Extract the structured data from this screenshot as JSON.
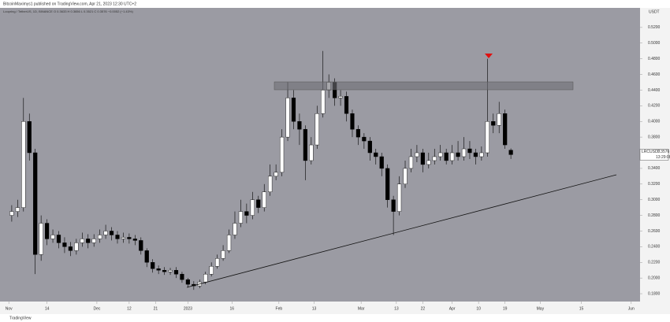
{
  "chart_data": {
    "type": "candlestick",
    "title": "BitcoinMaximys1 published on TradingView.com, Apr 21, 2023 12:30 UTC+2",
    "subtitle": "Loopring / TetherUS, 1D, BINANCE  O 0.3633  H 0.3656  L 0.3521  C 0.3576  −0.0052 (−1.43%)",
    "y_axis_label": "USDT",
    "footer": "TradingView",
    "price_tag": {
      "symbol": "LRCUSDT",
      "price": 0.3576,
      "countdown": "13:29:08"
    },
    "up_color": "#ffffff",
    "down_color": "#000000",
    "background": "#9b9ba3",
    "x": [
      "2022-11-02",
      "2022-11-04",
      "2022-11-06",
      "2022-11-08",
      "2022-11-10",
      "2022-11-12",
      "2022-11-14",
      "2022-11-16",
      "2022-11-18",
      "2022-11-20",
      "2022-11-22",
      "2022-11-24",
      "2022-11-26",
      "2022-11-28",
      "2022-11-30",
      "2022-12-02",
      "2022-12-04",
      "2022-12-06",
      "2022-12-08",
      "2022-12-10",
      "2022-12-12",
      "2022-12-14",
      "2022-12-16",
      "2022-12-18",
      "2022-12-20",
      "2022-12-22",
      "2022-12-24",
      "2022-12-26",
      "2022-12-28",
      "2022-12-30",
      "2023-01-01",
      "2023-01-03",
      "2023-01-05",
      "2023-01-07",
      "2023-01-09",
      "2023-01-11",
      "2023-01-13",
      "2023-01-15",
      "2023-01-17",
      "2023-01-19",
      "2023-01-21",
      "2023-01-23",
      "2023-01-25",
      "2023-01-27",
      "2023-01-29",
      "2023-01-31",
      "2023-02-02",
      "2023-02-04",
      "2023-02-06",
      "2023-02-08",
      "2023-02-10",
      "2023-02-12",
      "2023-02-14",
      "2023-02-16",
      "2023-02-18",
      "2023-02-20",
      "2023-02-22",
      "2023-02-24",
      "2023-02-26",
      "2023-02-28",
      "2023-03-02",
      "2023-03-04",
      "2023-03-06",
      "2023-03-08",
      "2023-03-10",
      "2023-03-12",
      "2023-03-14",
      "2023-03-16",
      "2023-03-18",
      "2023-03-20",
      "2023-03-22",
      "2023-03-24",
      "2023-03-26",
      "2023-03-28",
      "2023-03-30",
      "2023-04-01",
      "2023-04-03",
      "2023-04-05",
      "2023-04-07",
      "2023-04-09",
      "2023-04-11",
      "2023-04-13",
      "2023-04-15",
      "2023-04-17",
      "2023-04-19",
      "2023-04-21"
    ],
    "open": [
      0.28,
      0.285,
      0.29,
      0.4,
      0.36,
      0.23,
      0.27,
      0.25,
      0.255,
      0.245,
      0.24,
      0.235,
      0.245,
      0.25,
      0.245,
      0.25,
      0.255,
      0.26,
      0.255,
      0.25,
      0.252,
      0.25,
      0.248,
      0.235,
      0.22,
      0.212,
      0.21,
      0.208,
      0.21,
      0.205,
      0.198,
      0.192,
      0.19,
      0.195,
      0.205,
      0.215,
      0.225,
      0.235,
      0.255,
      0.27,
      0.285,
      0.28,
      0.3,
      0.29,
      0.31,
      0.33,
      0.335,
      0.38,
      0.43,
      0.4,
      0.39,
      0.35,
      0.37,
      0.41,
      0.44,
      0.45,
      0.43,
      0.432,
      0.41,
      0.39,
      0.38,
      0.375,
      0.36,
      0.355,
      0.34,
      0.3,
      0.285,
      0.32,
      0.34,
      0.355,
      0.36,
      0.345,
      0.35,
      0.355,
      0.36,
      0.35,
      0.36,
      0.355,
      0.365,
      0.36,
      0.355,
      0.36,
      0.4,
      0.395,
      0.41,
      0.3633
    ],
    "high": [
      0.293,
      0.3,
      0.43,
      0.41,
      0.365,
      0.28,
      0.275,
      0.262,
      0.26,
      0.252,
      0.246,
      0.25,
      0.258,
      0.256,
      0.256,
      0.262,
      0.268,
      0.265,
      0.26,
      0.258,
      0.257,
      0.255,
      0.252,
      0.238,
      0.224,
      0.216,
      0.214,
      0.213,
      0.214,
      0.208,
      0.2,
      0.196,
      0.198,
      0.208,
      0.22,
      0.23,
      0.242,
      0.262,
      0.285,
      0.3,
      0.295,
      0.31,
      0.305,
      0.32,
      0.345,
      0.345,
      0.39,
      0.45,
      0.44,
      0.41,
      0.395,
      0.38,
      0.42,
      0.49,
      0.46,
      0.455,
      0.44,
      0.438,
      0.415,
      0.395,
      0.385,
      0.38,
      0.365,
      0.36,
      0.345,
      0.305,
      0.33,
      0.35,
      0.365,
      0.37,
      0.365,
      0.36,
      0.365,
      0.37,
      0.365,
      0.37,
      0.375,
      0.38,
      0.375,
      0.365,
      0.368,
      0.48,
      0.41,
      0.425,
      0.415,
      0.3656
    ],
    "low": [
      0.272,
      0.278,
      0.285,
      0.35,
      0.205,
      0.222,
      0.242,
      0.245,
      0.238,
      0.232,
      0.228,
      0.23,
      0.24,
      0.238,
      0.24,
      0.245,
      0.25,
      0.248,
      0.244,
      0.245,
      0.244,
      0.242,
      0.23,
      0.214,
      0.207,
      0.205,
      0.204,
      0.204,
      0.2,
      0.194,
      0.188,
      0.185,
      0.187,
      0.192,
      0.202,
      0.212,
      0.222,
      0.232,
      0.25,
      0.265,
      0.27,
      0.275,
      0.283,
      0.285,
      0.305,
      0.325,
      0.33,
      0.375,
      0.39,
      0.37,
      0.325,
      0.345,
      0.365,
      0.405,
      0.43,
      0.42,
      0.42,
      0.4,
      0.38,
      0.37,
      0.365,
      0.35,
      0.345,
      0.33,
      0.29,
      0.255,
      0.28,
      0.315,
      0.335,
      0.348,
      0.335,
      0.34,
      0.345,
      0.35,
      0.345,
      0.345,
      0.35,
      0.35,
      0.352,
      0.345,
      0.35,
      0.355,
      0.385,
      0.385,
      0.365,
      0.3521
    ],
    "close": [
      0.285,
      0.29,
      0.4,
      0.36,
      0.23,
      0.27,
      0.25,
      0.255,
      0.245,
      0.24,
      0.235,
      0.245,
      0.25,
      0.245,
      0.25,
      0.255,
      0.26,
      0.255,
      0.25,
      0.252,
      0.25,
      0.248,
      0.235,
      0.22,
      0.212,
      0.21,
      0.208,
      0.21,
      0.205,
      0.198,
      0.192,
      0.19,
      0.195,
      0.205,
      0.215,
      0.225,
      0.235,
      0.255,
      0.27,
      0.285,
      0.28,
      0.3,
      0.29,
      0.31,
      0.33,
      0.335,
      0.38,
      0.43,
      0.4,
      0.39,
      0.35,
      0.37,
      0.41,
      0.44,
      0.45,
      0.43,
      0.432,
      0.41,
      0.39,
      0.38,
      0.375,
      0.36,
      0.355,
      0.34,
      0.3,
      0.285,
      0.32,
      0.34,
      0.355,
      0.36,
      0.345,
      0.35,
      0.355,
      0.36,
      0.35,
      0.36,
      0.355,
      0.365,
      0.36,
      0.355,
      0.36,
      0.4,
      0.395,
      0.41,
      0.37,
      0.3576
    ],
    "xlim": [
      "2022-10-29",
      "2023-06-04"
    ],
    "xticks": [
      {
        "value": "2022-11-01",
        "label": "Nov"
      },
      {
        "value": "2022-11-14",
        "label": "14"
      },
      {
        "value": "2022-12-01",
        "label": "Dec"
      },
      {
        "value": "2022-12-12",
        "label": "12"
      },
      {
        "value": "2022-12-21",
        "label": "21"
      },
      {
        "value": "2023-01-01",
        "label": "2023"
      },
      {
        "value": "2023-01-16",
        "label": "16"
      },
      {
        "value": "2023-02-01",
        "label": "Feb"
      },
      {
        "value": "2023-02-13",
        "label": "13"
      },
      {
        "value": "2023-03-01",
        "label": "Mar"
      },
      {
        "value": "2023-03-13",
        "label": "13"
      },
      {
        "value": "2023-03-22",
        "label": "22"
      },
      {
        "value": "2023-04-01",
        "label": "Apr"
      },
      {
        "value": "2023-04-10",
        "label": "10"
      },
      {
        "value": "2023-04-19",
        "label": "19"
      },
      {
        "value": "2023-05-01",
        "label": "May"
      },
      {
        "value": "2023-05-15",
        "label": "15"
      },
      {
        "value": "2023-06-01",
        "label": "Jun"
      }
    ],
    "ylim": [
      0.17,
      0.545
    ],
    "yticks": [
      {
        "value": 0.18,
        "label": "0.1800"
      },
      {
        "value": 0.2,
        "label": "0.2000"
      },
      {
        "value": 0.22,
        "label": "0.2200"
      },
      {
        "value": 0.24,
        "label": "0.2400"
      },
      {
        "value": 0.26,
        "label": "0.2600"
      },
      {
        "value": 0.28,
        "label": "0.2800"
      },
      {
        "value": 0.3,
        "label": "0.3000"
      },
      {
        "value": 0.32,
        "label": "0.3200"
      },
      {
        "value": 0.34,
        "label": "0.3400"
      },
      {
        "value": 0.36,
        "label": "0.3600"
      },
      {
        "value": 0.38,
        "label": "0.3800"
      },
      {
        "value": 0.4,
        "label": "0.4000"
      },
      {
        "value": 0.42,
        "label": "0.4200"
      },
      {
        "value": 0.44,
        "label": "0.4400"
      },
      {
        "value": 0.46,
        "label": "0.4600"
      },
      {
        "value": 0.48,
        "label": "0.4800"
      },
      {
        "value": 0.5,
        "label": "0.5000"
      },
      {
        "value": 0.52,
        "label": "0.5200"
      }
    ]
  }
}
